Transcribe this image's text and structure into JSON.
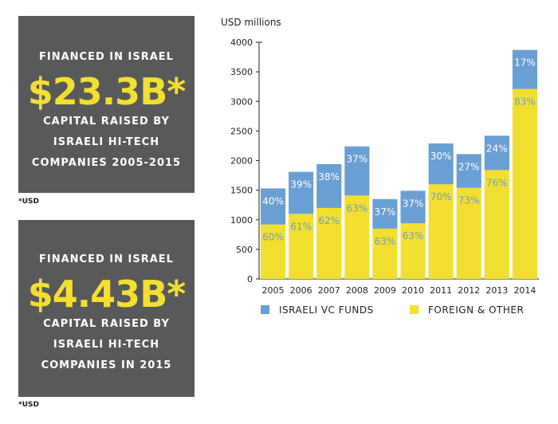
{
  "box1": {
    "heading": "FINANCED IN ISRAEL",
    "amount": "$23.3B*",
    "lines": [
      "CAPITAL RAISED BY",
      "ISRAELI HI-TECH",
      "COMPANIES 2005-2015"
    ]
  },
  "note1": "*USD",
  "box2": {
    "heading": "FINANCED IN ISRAEL",
    "amount": "$4.43B*",
    "lines": [
      "CAPITAL RAISED BY",
      "ISRAELI HI-TECH",
      "COMPANIES IN 2015"
    ]
  },
  "note2": "*USD",
  "colors": {
    "box_bg": "#58595b",
    "accent_yellow": "#f2df2f",
    "israeli_vc": "#6a9fd4",
    "foreign": "#f2df2f",
    "pct_on_yellow": "#6a9fd4",
    "pct_on_blue": "#ffffff"
  },
  "chart_data": {
    "type": "bar",
    "stacked": true,
    "title": "",
    "ylabel": "USD millions",
    "xlabel": "",
    "ylim": [
      0,
      4000
    ],
    "yticks": [
      0,
      500,
      1000,
      1500,
      2000,
      2500,
      3000,
      3500,
      4000
    ],
    "categories": [
      "2005",
      "2006",
      "2007",
      "2008",
      "2009",
      "2010",
      "2011",
      "2012",
      "2013",
      "2014"
    ],
    "series": [
      {
        "name": "FOREIGN & OTHER",
        "values": [
          920,
          1100,
          1200,
          1410,
          850,
          940,
          1600,
          1540,
          1840,
          3210
        ],
        "labels": [
          "60%",
          "61%",
          "62%",
          "63%",
          "63%",
          "63%",
          "70%",
          "73%",
          "76%",
          "83%"
        ]
      },
      {
        "name": "ISRAELI VC FUNDS",
        "values": [
          610,
          710,
          740,
          830,
          500,
          550,
          690,
          570,
          580,
          660
        ],
        "labels": [
          "40%",
          "39%",
          "38%",
          "37%",
          "37%",
          "37%",
          "30%",
          "27%",
          "24%",
          "17%"
        ]
      }
    ],
    "grid": false,
    "legend": "bottom"
  }
}
